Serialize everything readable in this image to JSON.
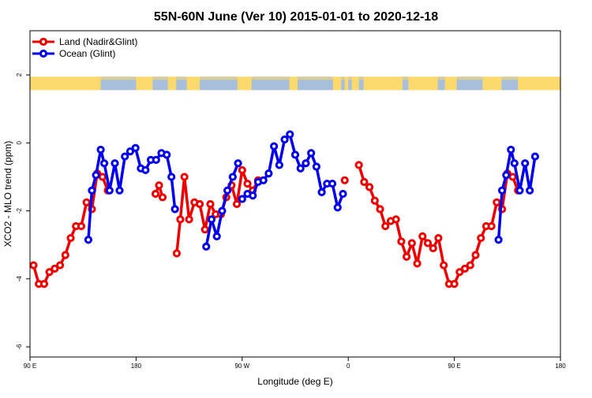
{
  "chart_data": {
    "type": "line",
    "title": "55N-60N June (Ver 10)   2015-01-01 to 2020-12-18",
    "xlabel": "Longitude (deg E)",
    "ylabel": "XCO2 - MLO trend (ppm)",
    "xlim": [
      90,
      540
    ],
    "ylim": [
      -6.3,
      3.3
    ],
    "x_ticks": [
      {
        "value": 90,
        "label": "90 E"
      },
      {
        "value": 180,
        "label": "180"
      },
      {
        "value": 270,
        "label": "90 W"
      },
      {
        "value": 360,
        "label": "0"
      },
      {
        "value": 450,
        "label": "90 E"
      },
      {
        "value": 540,
        "label": "180"
      }
    ],
    "y_ticks": [
      {
        "value": -6,
        "label": "-6"
      },
      {
        "value": -4,
        "label": "-4"
      },
      {
        "value": -2,
        "label": "-2"
      },
      {
        "value": 0,
        "label": "0"
      },
      {
        "value": 2,
        "label": "2"
      }
    ],
    "legend": "top-left",
    "landmask_band": {
      "y": 1.75,
      "land_color": "#fcd96c",
      "ocean_color": "#a8bfdc"
    },
    "series": [
      {
        "name": "Land (Nadir&Glint)",
        "color": "#ee0000",
        "segments": [
          [
            [
              93,
              -3.6
            ],
            [
              97.5,
              -4.15
            ],
            [
              102,
              -4.15
            ],
            [
              106.5,
              -3.8
            ],
            [
              111,
              -3.7
            ],
            [
              115.5,
              -3.6
            ],
            [
              120,
              -3.3
            ],
            [
              124.5,
              -2.8
            ],
            [
              129,
              -2.45
            ],
            [
              133.5,
              -2.45
            ],
            [
              138,
              -1.75
            ],
            [
              142.5,
              -1.95
            ],
            [
              147,
              -0.9
            ],
            [
              151.5,
              -1
            ],
            [
              156,
              -1.4
            ]
          ],
          [
            [
              196.5,
              -1.5
            ],
            [
              199.5,
              -1.25
            ],
            [
              202.5,
              -1.6
            ]
          ],
          [
            [
              214.5,
              -3.25
            ],
            [
              217.5,
              -2.25
            ],
            [
              221,
              -1
            ],
            [
              225,
              -2.25
            ],
            [
              229.5,
              -1.75
            ],
            [
              234,
              -1.8
            ],
            [
              238.5,
              -2.55
            ],
            [
              243,
              -1.8
            ],
            [
              247.5,
              -2.1
            ],
            [
              252,
              -2.1
            ],
            [
              256.5,
              -1.6
            ],
            [
              261,
              -1.25
            ],
            [
              265.5,
              -1.8
            ],
            [
              270,
              -0.8
            ],
            [
              274.5,
              -1.2
            ],
            [
              279,
              -1.4
            ],
            [
              283.5,
              -1.1
            ]
          ],
          [
            [
              357,
              -1.1
            ]
          ],
          [
            [
              369,
              -0.65
            ],
            [
              373.5,
              -1.15
            ],
            [
              378,
              -1.3
            ],
            [
              382.5,
              -1.7
            ],
            [
              387,
              -1.95
            ],
            [
              391.5,
              -2.45
            ],
            [
              396,
              -2.3
            ],
            [
              400.5,
              -2.25
            ],
            [
              405,
              -2.9
            ],
            [
              409.5,
              -3.35
            ],
            [
              414,
              -2.95
            ],
            [
              418.5,
              -3.55
            ],
            [
              423,
              -2.75
            ],
            [
              427.5,
              -2.95
            ],
            [
              432,
              -3.1
            ],
            [
              436.5,
              -2.8
            ],
            [
              441,
              -3.6
            ],
            [
              445.5,
              -4.15
            ],
            [
              450,
              -4.15
            ],
            [
              454.5,
              -3.8
            ],
            [
              459,
              -3.7
            ],
            [
              463.5,
              -3.6
            ],
            [
              468,
              -3.3
            ],
            [
              472.5,
              -2.8
            ],
            [
              477,
              -2.45
            ],
            [
              481.5,
              -2.45
            ],
            [
              486,
              -1.75
            ],
            [
              490.5,
              -1.95
            ],
            [
              495,
              -0.9
            ],
            [
              499.5,
              -1
            ],
            [
              504,
              -1.4
            ]
          ]
        ]
      },
      {
        "name": "Ocean (Glint)",
        "color": "#0000ee",
        "segments": [
          [
            [
              139.5,
              -2.85
            ],
            [
              142.5,
              -1.4
            ],
            [
              146,
              -0.95
            ],
            [
              150,
              -0.2
            ],
            [
              153,
              -0.6
            ],
            [
              157.5,
              -1.4
            ],
            [
              162,
              -0.6
            ],
            [
              166,
              -1.4
            ],
            [
              170.5,
              -0.4
            ],
            [
              175,
              -0.25
            ],
            [
              179.5,
              -0.15
            ],
            [
              184,
              -0.75
            ],
            [
              188,
              -0.8
            ],
            [
              192.5,
              -0.5
            ],
            [
              197,
              -0.5
            ],
            [
              201.5,
              -0.3
            ],
            [
              206,
              -0.35
            ],
            [
              210,
              -1
            ],
            [
              213,
              -1.95
            ]
          ],
          [
            [
              239.5,
              -3.05
            ],
            [
              244,
              -2.25
            ],
            [
              248.5,
              -2.75
            ],
            [
              253,
              -2
            ],
            [
              257.5,
              -1.4
            ],
            [
              262,
              -1
            ],
            [
              266.5,
              -0.6
            ]
          ],
          [
            [
              270,
              -1.65
            ],
            [
              274.5,
              -1.5
            ],
            [
              279,
              -1.55
            ],
            [
              283.5,
              -1.15
            ],
            [
              288,
              -1.1
            ],
            [
              292.5,
              -0.9
            ],
            [
              297,
              -0.1
            ],
            [
              301.5,
              -0.65
            ],
            [
              306,
              0.1
            ],
            [
              310.5,
              0.25
            ],
            [
              315,
              -0.35
            ],
            [
              319.5,
              -0.75
            ],
            [
              324,
              -0.6
            ],
            [
              328.5,
              -0.3
            ],
            [
              333,
              -0.7
            ],
            [
              337.5,
              -1.45
            ],
            [
              342,
              -1.2
            ],
            [
              346.5,
              -1.2
            ],
            [
              351,
              -1.9
            ],
            [
              355.5,
              -1.5
            ]
          ],
          [
            [
              487.5,
              -2.85
            ],
            [
              490.5,
              -1.4
            ],
            [
              494,
              -0.95
            ],
            [
              498,
              -0.2
            ],
            [
              501,
              -0.6
            ],
            [
              505.5,
              -1.4
            ],
            [
              510,
              -0.6
            ],
            [
              514,
              -1.4
            ],
            [
              518.5,
              -0.4
            ]
          ]
        ]
      }
    ]
  }
}
